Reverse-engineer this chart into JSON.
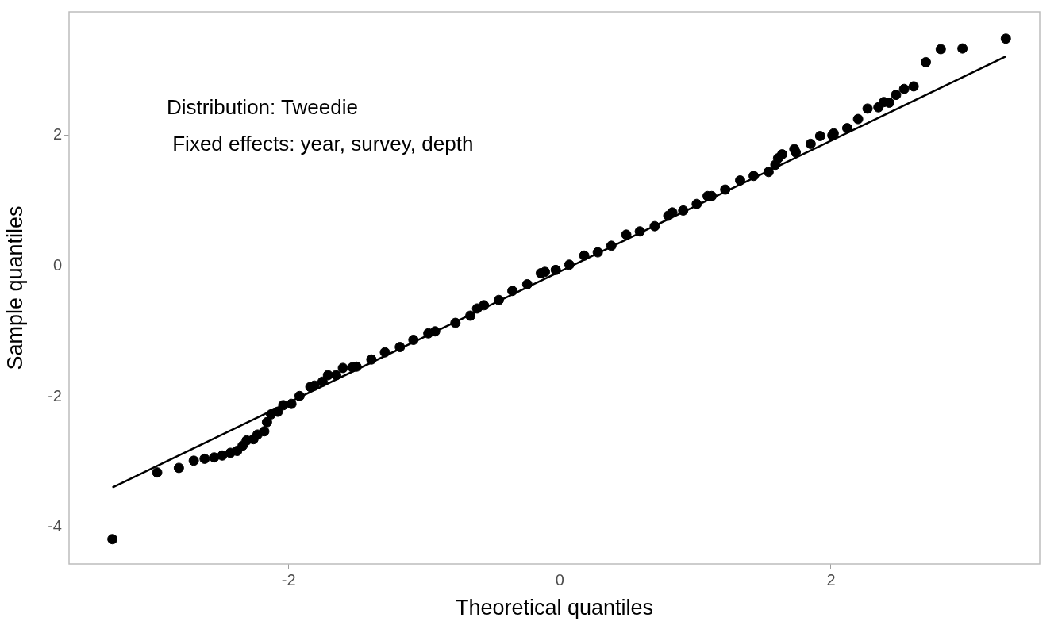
{
  "chart_data": {
    "type": "scatter",
    "xlabel": "Theoretical quantiles",
    "ylabel": "Sample quantiles",
    "annotations": [
      "Distribution: Tweedie",
      " Fixed effects: year, survey, depth"
    ],
    "xlim": [
      -3.62,
      3.54
    ],
    "ylim": [
      -4.56,
      3.89
    ],
    "xticks": [
      -2,
      0,
      2
    ],
    "yticks": [
      -4,
      -2,
      0,
      2
    ],
    "grid": false,
    "legend": false,
    "series": [
      {
        "color": "#000000",
        "marker": "circle",
        "x": [
          -3.3,
          -2.97,
          -2.81,
          -2.7,
          -2.62,
          -2.55,
          -2.49,
          -2.43,
          -2.38,
          -2.34,
          -2.31,
          -2.26,
          -2.23,
          -2.18,
          -2.16,
          -2.13,
          -2.08,
          -2.04,
          -1.98,
          -1.92,
          -1.84,
          -1.81,
          -1.75,
          -1.71,
          -1.65,
          -1.6,
          -1.53,
          -1.5,
          -1.39,
          -1.29,
          -1.18,
          -1.08,
          -0.97,
          -0.92,
          -0.77,
          -0.66,
          -0.61,
          -0.56,
          -0.45,
          -0.35,
          -0.24,
          -0.14,
          -0.11,
          -0.03,
          0.07,
          0.18,
          0.28,
          0.38,
          0.49,
          0.59,
          0.7,
          0.8,
          0.83,
          0.91,
          1.01,
          1.09,
          1.12,
          1.22,
          1.33,
          1.43,
          1.54,
          1.59,
          1.61,
          1.64,
          1.73,
          1.74,
          1.85,
          1.92,
          2.01,
          2.02,
          2.12,
          2.2,
          2.27,
          2.35,
          2.39,
          2.43,
          2.48,
          2.54,
          2.61,
          2.7,
          2.81,
          2.97,
          3.29
        ],
        "values": [
          -4.18,
          -3.16,
          -3.09,
          -2.98,
          -2.95,
          -2.93,
          -2.9,
          -2.86,
          -2.83,
          -2.75,
          -2.67,
          -2.65,
          -2.58,
          -2.53,
          -2.39,
          -2.27,
          -2.23,
          -2.13,
          -2.11,
          -1.99,
          -1.85,
          -1.83,
          -1.77,
          -1.67,
          -1.67,
          -1.56,
          -1.55,
          -1.54,
          -1.43,
          -1.32,
          -1.24,
          -1.13,
          -1.03,
          -1.0,
          -0.87,
          -0.76,
          -0.65,
          -0.6,
          -0.52,
          -0.38,
          -0.28,
          -0.11,
          -0.09,
          -0.06,
          0.02,
          0.16,
          0.21,
          0.31,
          0.48,
          0.53,
          0.61,
          0.77,
          0.82,
          0.85,
          0.95,
          1.07,
          1.07,
          1.17,
          1.31,
          1.38,
          1.44,
          1.55,
          1.65,
          1.71,
          1.79,
          1.74,
          1.87,
          1.99,
          2.0,
          2.03,
          2.11,
          2.25,
          2.41,
          2.43,
          2.51,
          2.5,
          2.62,
          2.71,
          2.75,
          3.12,
          3.32,
          3.33,
          3.48
        ]
      },
      {
        "type": "line",
        "color": "#000000",
        "marker": "none",
        "line_style": "solid",
        "x": [
          -3.3,
          3.29
        ],
        "values": [
          -3.39,
          3.21
        ]
      }
    ]
  }
}
